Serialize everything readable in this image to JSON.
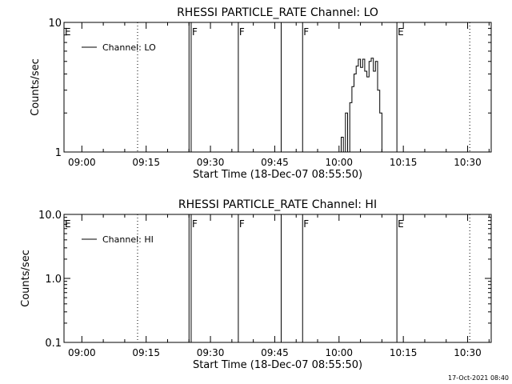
{
  "timestamp": "17-Oct-2021 08:40",
  "chart_data": [
    {
      "type": "line",
      "title": "RHESSI PARTICLE_RATE Channel: LO",
      "xlabel": "Start Time (18-Dec-07 08:55:50)",
      "ylabel": "Counts/sec",
      "y_scale": "log",
      "ylim": [
        1,
        10
      ],
      "y_ticks": [
        {
          "value": 1,
          "label": "1"
        },
        {
          "value": 10,
          "label": "10"
        }
      ],
      "x_ticks": [
        "09:00",
        "09:15",
        "09:30",
        "09:45",
        "10:00",
        "10:15",
        "10:30"
      ],
      "legend": {
        "entry": "Channel: LO",
        "placement": "top-left"
      },
      "annotations": [
        {
          "time": "08:55:50",
          "label": "E",
          "style": "none"
        },
        {
          "time": "09:13",
          "label": "",
          "style": "dotted"
        },
        {
          "time": "09:25",
          "label": "",
          "style": "solid"
        },
        {
          "time": "09:25.5",
          "label": "F",
          "style": "solid"
        },
        {
          "time": "09:36.5",
          "label": "F",
          "style": "solid"
        },
        {
          "time": "09:46.5",
          "label": "",
          "style": "solid"
        },
        {
          "time": "09:51.5",
          "label": "F",
          "style": "solid"
        },
        {
          "time": "10:13.5",
          "label": "E",
          "style": "solid"
        },
        {
          "time": "10:30.5",
          "label": "",
          "style": "dotted"
        }
      ],
      "series": [
        {
          "name": "Channel: LO",
          "points": [
            [
              "10:00",
              1
            ],
            [
              "10:00.5",
              1.3
            ],
            [
              "10:01",
              1
            ],
            [
              "10:01.5",
              2
            ],
            [
              "10:02",
              1
            ],
            [
              "10:02.5",
              2.4
            ],
            [
              "10:03",
              3.2
            ],
            [
              "10:03.5",
              4
            ],
            [
              "10:04",
              4.6
            ],
            [
              "10:04.5",
              5.2
            ],
            [
              "10:05",
              4.5
            ],
            [
              "10:05.5",
              5.2
            ],
            [
              "10:06",
              4.2
            ],
            [
              "10:06.5",
              3.8
            ],
            [
              "10:07",
              5
            ],
            [
              "10:07.5",
              5.3
            ],
            [
              "10:08",
              4.2
            ],
            [
              "10:08.5",
              5
            ],
            [
              "10:09",
              3
            ],
            [
              "10:09.5",
              2
            ],
            [
              "10:10",
              1
            ]
          ]
        }
      ]
    },
    {
      "type": "line",
      "title": "RHESSI PARTICLE_RATE Channel: HI",
      "xlabel": "Start Time (18-Dec-07 08:55:50)",
      "ylabel": "Counts/sec",
      "y_scale": "log",
      "ylim": [
        0.1,
        10
      ],
      "y_ticks": [
        {
          "value": 0.1,
          "label": "0.1"
        },
        {
          "value": 1,
          "label": "1.0"
        },
        {
          "value": 10,
          "label": "10.0"
        }
      ],
      "x_ticks": [
        "09:00",
        "09:15",
        "09:30",
        "09:45",
        "10:00",
        "10:15",
        "10:30"
      ],
      "legend": {
        "entry": "Channel: HI",
        "placement": "top-left"
      },
      "annotations": [
        {
          "time": "08:55:50",
          "label": "E",
          "style": "none"
        },
        {
          "time": "09:13",
          "label": "",
          "style": "dotted"
        },
        {
          "time": "09:25",
          "label": "",
          "style": "solid"
        },
        {
          "time": "09:25.5",
          "label": "F",
          "style": "solid"
        },
        {
          "time": "09:36.5",
          "label": "F",
          "style": "solid"
        },
        {
          "time": "09:46.5",
          "label": "",
          "style": "solid"
        },
        {
          "time": "09:51.5",
          "label": "F",
          "style": "solid"
        },
        {
          "time": "10:13.5",
          "label": "E",
          "style": "solid"
        },
        {
          "time": "10:30.5",
          "label": "",
          "style": "dotted"
        }
      ],
      "series": [
        {
          "name": "Channel: HI",
          "points": []
        }
      ]
    }
  ]
}
